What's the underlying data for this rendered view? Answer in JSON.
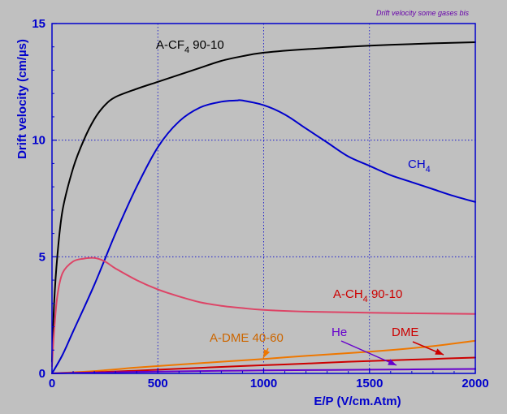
{
  "chart_data": {
    "type": "line",
    "title": "Drift velocity some gases bis",
    "xlabel": "E/P (V/cm.Atm)",
    "ylabel": "Drift velocity (cm/µs)",
    "xlim": [
      0,
      2000
    ],
    "ylim": [
      0,
      15
    ],
    "x_ticks": [
      0,
      500,
      1000,
      1500,
      2000
    ],
    "y_ticks": [
      0,
      5,
      10,
      15
    ],
    "grid": true,
    "colors": {
      "background": "#c0c0c0",
      "axes": "#0000cc",
      "grid": "#0000cc"
    },
    "series": [
      {
        "key": "a-cf4",
        "label": {
          "main": "A-CF",
          "sub": "4",
          "tail": " 90-10",
          "color": "#000000"
        },
        "color": "#000000",
        "points": [
          [
            0,
            0.5
          ],
          [
            10,
            3
          ],
          [
            25,
            5
          ],
          [
            50,
            7
          ],
          [
            100,
            8.8
          ],
          [
            150,
            10
          ],
          [
            200,
            10.9
          ],
          [
            250,
            11.5
          ],
          [
            300,
            11.85
          ],
          [
            400,
            12.2
          ],
          [
            500,
            12.5
          ],
          [
            600,
            12.8
          ],
          [
            700,
            13.1
          ],
          [
            800,
            13.4
          ],
          [
            900,
            13.6
          ],
          [
            1000,
            13.75
          ],
          [
            1200,
            13.9
          ],
          [
            1500,
            14.05
          ],
          [
            1800,
            14.15
          ],
          [
            2000,
            14.2
          ]
        ]
      },
      {
        "key": "ch4",
        "label": {
          "main": "CH",
          "sub": "4",
          "tail": "",
          "color": "#0000cc"
        },
        "color": "#0000cc",
        "points": [
          [
            0,
            0
          ],
          [
            50,
            0.8
          ],
          [
            100,
            1.8
          ],
          [
            200,
            3.8
          ],
          [
            300,
            6
          ],
          [
            400,
            8
          ],
          [
            500,
            9.7
          ],
          [
            600,
            10.8
          ],
          [
            700,
            11.4
          ],
          [
            800,
            11.65
          ],
          [
            870,
            11.7
          ],
          [
            900,
            11.7
          ],
          [
            1000,
            11.5
          ],
          [
            1100,
            11.1
          ],
          [
            1200,
            10.5
          ],
          [
            1300,
            9.9
          ],
          [
            1400,
            9.3
          ],
          [
            1500,
            8.9
          ],
          [
            1600,
            8.5
          ],
          [
            1700,
            8.2
          ],
          [
            1800,
            7.9
          ],
          [
            1900,
            7.6
          ],
          [
            2000,
            7.35
          ]
        ]
      },
      {
        "key": "a-ch4",
        "label": {
          "main": "A-CH",
          "sub": "4",
          "tail": " 90-10",
          "color": "#cc0000"
        },
        "color": "#dd4466",
        "points": [
          [
            0,
            0.3
          ],
          [
            10,
            1.8
          ],
          [
            25,
            3.3
          ],
          [
            50,
            4.3
          ],
          [
            100,
            4.8
          ],
          [
            150,
            4.92
          ],
          [
            200,
            4.95
          ],
          [
            250,
            4.8
          ],
          [
            300,
            4.5
          ],
          [
            400,
            4.0
          ],
          [
            500,
            3.6
          ],
          [
            600,
            3.3
          ],
          [
            700,
            3.05
          ],
          [
            800,
            2.9
          ],
          [
            900,
            2.8
          ],
          [
            1000,
            2.72
          ],
          [
            1200,
            2.65
          ],
          [
            1500,
            2.6
          ],
          [
            2000,
            2.55
          ]
        ]
      },
      {
        "key": "a-dme",
        "label": {
          "main": "A-DME 40-60",
          "sub": "",
          "tail": "",
          "color": "#cc6600"
        },
        "color": "#ee7700",
        "points": [
          [
            0,
            0
          ],
          [
            200,
            0.1
          ],
          [
            400,
            0.25
          ],
          [
            600,
            0.38
          ],
          [
            800,
            0.5
          ],
          [
            1000,
            0.62
          ],
          [
            1200,
            0.75
          ],
          [
            1400,
            0.87
          ],
          [
            1600,
            1.0
          ],
          [
            1800,
            1.17
          ],
          [
            2000,
            1.4
          ]
        ]
      },
      {
        "key": "dme",
        "label": {
          "main": "DME",
          "sub": "",
          "tail": "",
          "color": "#cc0000"
        },
        "color": "#cc0000",
        "points": [
          [
            0,
            0
          ],
          [
            200,
            0.05
          ],
          [
            400,
            0.12
          ],
          [
            600,
            0.2
          ],
          [
            800,
            0.28
          ],
          [
            1000,
            0.35
          ],
          [
            1200,
            0.42
          ],
          [
            1400,
            0.5
          ],
          [
            1600,
            0.56
          ],
          [
            1800,
            0.62
          ],
          [
            2000,
            0.68
          ]
        ]
      },
      {
        "key": "he",
        "label": {
          "main": "He",
          "sub": "",
          "tail": "",
          "color": "#6600cc"
        },
        "color": "#6600cc",
        "points": [
          [
            0,
            0
          ],
          [
            100,
            0.02
          ],
          [
            300,
            0.05
          ],
          [
            500,
            0.08
          ],
          [
            800,
            0.11
          ],
          [
            1000,
            0.13
          ],
          [
            1500,
            0.16
          ],
          [
            2000,
            0.19
          ]
        ]
      }
    ]
  }
}
